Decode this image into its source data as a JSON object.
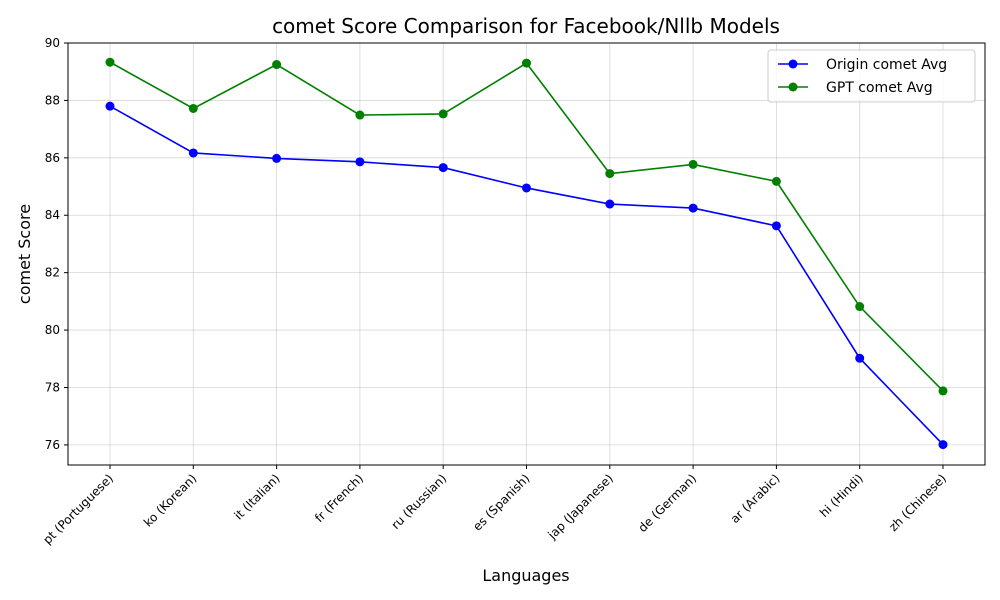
{
  "chart_data": {
    "type": "line",
    "title": "comet Score Comparison for Facebook/Nllb Models",
    "xlabel": "Languages",
    "ylabel": "comet Score",
    "categories": [
      "pt (Portuguese)",
      "ko (Korean)",
      "it (Italian)",
      "fr (French)",
      "ru (Russian)",
      "es (Spanish)",
      "jap (Japanese)",
      "de (German)",
      "ar (Arabic)",
      "hi (Hindi)",
      "zh (Chinese)"
    ],
    "ylim": [
      75.3,
      90
    ],
    "yticks": [
      76,
      78,
      80,
      82,
      84,
      86,
      88,
      90
    ],
    "grid": true,
    "legend_position": "top-right",
    "series": [
      {
        "name": "Origin comet Avg",
        "color": "#0000ff",
        "values": [
          87.8,
          86.17,
          85.98,
          85.86,
          85.66,
          84.95,
          84.39,
          84.25,
          83.63,
          79.02,
          76.01
        ]
      },
      {
        "name": "GPT comet Avg",
        "color": "#008000",
        "values": [
          89.33,
          87.72,
          89.25,
          87.49,
          87.53,
          89.3,
          85.45,
          85.77,
          85.18,
          80.82,
          77.88
        ]
      }
    ]
  }
}
